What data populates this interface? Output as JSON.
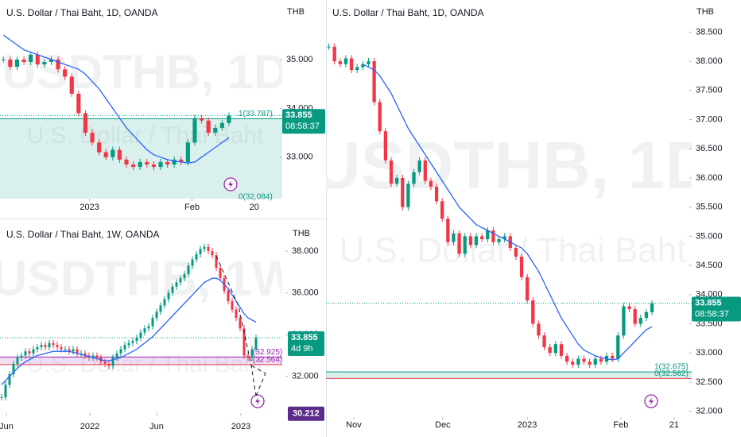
{
  "chart_data": [
    {
      "type": "candlestick",
      "title": "U.S. Dollar / Thai Baht, 1D, OANDA",
      "currency": "THB",
      "watermark": "USDTHB, 1D",
      "watermark_sub": "U.S. Dollar / Thai Baht",
      "up_color": "#089981",
      "down_color": "#f23645",
      "closes": [
        35.0,
        34.85,
        35.0,
        34.95,
        35.1,
        34.9,
        34.95,
        35.0,
        34.8,
        34.65,
        34.3,
        33.9,
        33.5,
        33.3,
        33.1,
        33.0,
        33.15,
        32.95,
        32.85,
        32.8,
        32.9,
        32.85,
        32.8,
        32.9,
        32.85,
        32.95,
        32.9,
        33.3,
        33.8,
        33.75,
        33.5,
        33.6,
        33.7,
        33.85
      ],
      "ma": {
        "color": "#2962ff",
        "values": [
          35.5,
          35.4,
          35.3,
          35.2,
          35.15,
          35.1,
          35.05,
          35.0,
          34.95,
          34.9,
          34.85,
          34.8,
          34.7,
          34.55,
          34.4,
          34.2,
          34.0,
          33.8,
          33.6,
          33.45,
          33.3,
          33.15,
          33.05,
          33.0,
          32.95,
          32.92,
          32.9,
          32.88,
          32.9,
          33.0,
          33.1,
          33.2,
          33.3,
          33.4
        ]
      },
      "ylim": [
        32.15,
        36.22
      ],
      "yticks": [
        {
          "value": 33,
          "label": "33.000"
        },
        {
          "value": 34,
          "label": "34.000"
        },
        {
          "value": 35,
          "label": "35.000"
        }
      ],
      "xlim": [
        -0.5,
        40.8
      ],
      "xticks": [
        {
          "value": 12.6,
          "label": "2023"
        },
        {
          "value": 27.6,
          "label": "Feb"
        },
        {
          "value": 36.7,
          "label": "20"
        }
      ],
      "last_price": 33.855,
      "countdown": "08:58:37",
      "fib": {
        "color": "#089981",
        "levels": [
          {
            "value": 33.787,
            "label": "1(33.787)"
          },
          {
            "value": 32.084,
            "label": "0(32.084)"
          }
        ]
      }
    },
    {
      "type": "candlestick",
      "title": "U.S. Dollar / Thai Baht, 1D, OANDA",
      "currency": "THB",
      "watermark": "USDTHB, 1D",
      "watermark_sub": "U.S. Dollar / Thai Baht",
      "up_color": "#089981",
      "down_color": "#f23645",
      "closes": [
        38.25,
        38.0,
        37.95,
        38.05,
        37.85,
        37.9,
        37.95,
        38.0,
        37.3,
        36.8,
        36.3,
        35.9,
        36.0,
        35.5,
        35.9,
        36.1,
        36.3,
        35.95,
        35.85,
        35.6,
        35.3,
        34.9,
        35.05,
        34.7,
        35.0,
        34.85,
        35.0,
        34.95,
        35.1,
        34.9,
        34.95,
        35.0,
        34.8,
        34.65,
        34.3,
        33.9,
        33.5,
        33.3,
        33.1,
        33.0,
        33.15,
        32.95,
        32.85,
        32.8,
        32.9,
        32.85,
        32.8,
        32.9,
        32.85,
        32.95,
        32.9,
        33.3,
        33.8,
        33.75,
        33.5,
        33.6,
        33.7,
        33.85
      ],
      "ma": {
        "color": "#2962ff",
        "values": [
          null,
          null,
          null,
          null,
          null,
          null,
          37.95,
          37.9,
          37.85,
          37.75,
          37.6,
          37.45,
          37.25,
          37.05,
          36.85,
          36.7,
          36.55,
          36.4,
          36.25,
          36.1,
          35.95,
          35.8,
          35.65,
          35.5,
          35.4,
          35.3,
          35.2,
          35.15,
          35.1,
          35.05,
          35.0,
          34.95,
          34.9,
          34.85,
          34.8,
          34.7,
          34.55,
          34.4,
          34.2,
          34.0,
          33.8,
          33.6,
          33.45,
          33.3,
          33.15,
          33.05,
          33.0,
          32.95,
          32.92,
          32.9,
          32.88,
          32.9,
          33.0,
          33.1,
          33.2,
          33.3,
          33.4,
          33.45
        ]
      },
      "ylim": [
        31.9,
        39.05
      ],
      "yticks": [
        {
          "value": 32,
          "label": "32.000"
        },
        {
          "value": 32.5,
          "label": "32.500"
        },
        {
          "value": 33,
          "label": "33.000"
        },
        {
          "value": 33.5,
          "label": "33.500"
        },
        {
          "value": 34,
          "label": "34.000"
        },
        {
          "value": 34.5,
          "label": "34.500"
        },
        {
          "value": 35,
          "label": "35.000"
        },
        {
          "value": 35.5,
          "label": "35.500"
        },
        {
          "value": 36,
          "label": "36.000"
        },
        {
          "value": 36.5,
          "label": "36.500"
        },
        {
          "value": 37,
          "label": "37.000"
        },
        {
          "value": 37.5,
          "label": "37.500"
        },
        {
          "value": 38,
          "label": "38.000"
        },
        {
          "value": 38.5,
          "label": "38.500"
        }
      ],
      "xlim": [
        -0.5,
        64
      ],
      "xticks": [
        {
          "value": 4.4,
          "label": "Nov"
        },
        {
          "value": 20.1,
          "label": "Dec"
        },
        {
          "value": 35,
          "label": "2023"
        },
        {
          "value": 51.5,
          "label": "Feb"
        },
        {
          "value": 60.9,
          "label": "21"
        }
      ],
      "last_price": 33.855,
      "countdown": "08:58:37",
      "fib": {
        "color": "#089981",
        "levels": [
          {
            "value": 32.675,
            "label": "1(32.675)"
          },
          {
            "value": 32.562,
            "label": "0(32.562)"
          }
        ]
      }
    },
    {
      "type": "candlestick",
      "title": "U.S. Dollar / Thai Baht, 1W, OANDA",
      "currency": "THB",
      "watermark": "USDTHB, 1W",
      "watermark_sub": "U.S. Dollar / Thai Baht",
      "up_color": "#089981",
      "down_color": "#f23645",
      "closes": [
        31.0,
        31.6,
        32.1,
        32.6,
        32.9,
        33.0,
        33.2,
        33.1,
        33.3,
        33.4,
        33.5,
        33.4,
        33.6,
        33.5,
        33.4,
        33.3,
        33.3,
        33.2,
        33.3,
        33.1,
        33.1,
        33.0,
        32.9,
        33.0,
        32.9,
        32.7,
        32.6,
        32.5,
        32.9,
        33.1,
        33.3,
        33.5,
        33.6,
        33.7,
        33.85,
        34.1,
        34.3,
        34.4,
        34.8,
        35.1,
        35.4,
        35.7,
        36.0,
        36.3,
        36.5,
        36.7,
        36.9,
        37.3,
        37.6,
        37.85,
        38.1,
        38.2,
        38.0,
        37.8,
        37.2,
        36.7,
        36.1,
        35.6,
        35.2,
        34.8,
        34.3,
        33.0,
        32.9,
        33.3,
        33.855
      ],
      "ma": {
        "color": "#2962ff",
        "values": [
          31.6,
          31.8,
          32.0,
          32.2,
          32.4,
          32.55,
          32.7,
          32.8,
          32.9,
          33.0,
          33.05,
          33.1,
          33.15,
          33.2,
          33.2,
          33.2,
          33.2,
          33.2,
          33.15,
          33.1,
          33.05,
          33.0,
          32.95,
          32.9,
          32.85,
          32.8,
          32.75,
          32.75,
          32.8,
          32.85,
          32.9,
          33.0,
          33.1,
          33.2,
          33.3,
          33.45,
          33.6,
          33.75,
          33.9,
          34.1,
          34.3,
          34.5,
          34.7,
          34.9,
          35.1,
          35.3,
          35.5,
          35.7,
          35.9,
          36.1,
          36.3,
          36.5,
          36.6,
          36.7,
          36.7,
          36.6,
          36.4,
          36.2,
          35.9,
          35.6,
          35.3,
          35.0,
          34.8,
          34.7,
          34.6
        ]
      },
      "ylim": [
        30.24,
        39.37
      ],
      "yticks": [
        {
          "value": 32,
          "label": "32.000"
        },
        {
          "value": 34,
          "label": "34.000"
        },
        {
          "value": 36,
          "label": "36.000"
        },
        {
          "value": 38,
          "label": "38.000"
        }
      ],
      "xlim": [
        -0.4,
        70.6
      ],
      "xticks": [
        {
          "value": 1.2,
          "label": "Jun"
        },
        {
          "value": 22.2,
          "label": "2022"
        },
        {
          "value": 39,
          "label": "Jun"
        },
        {
          "value": 60.2,
          "label": "2023"
        }
      ],
      "last_price": 33.855,
      "countdown": "4d 9h",
      "marker_price": 30.212,
      "fib": {
        "color": "#9c27b0",
        "levels": [
          {
            "value": 32.925,
            "label": "(32.925)"
          },
          {
            "value": 32.564,
            "label": "(32.564)"
          }
        ]
      }
    }
  ]
}
